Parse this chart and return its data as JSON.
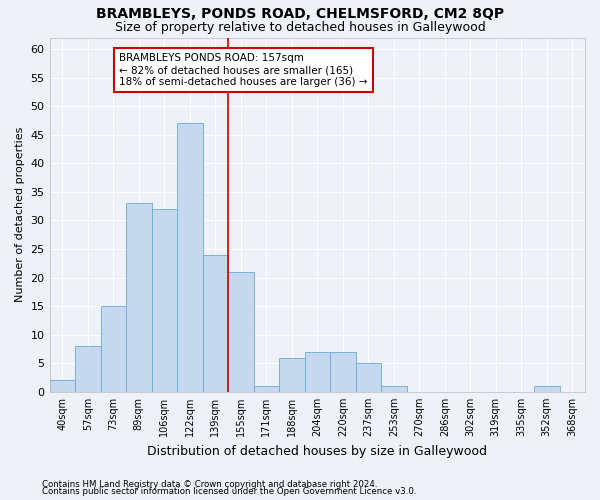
{
  "title": "BRAMBLEYS, PONDS ROAD, CHELMSFORD, CM2 8QP",
  "subtitle": "Size of property relative to detached houses in Galleywood",
  "xlabel": "Distribution of detached houses by size in Galleywood",
  "ylabel": "Number of detached properties",
  "categories": [
    "40sqm",
    "57sqm",
    "73sqm",
    "89sqm",
    "106sqm",
    "122sqm",
    "139sqm",
    "155sqm",
    "171sqm",
    "188sqm",
    "204sqm",
    "220sqm",
    "237sqm",
    "253sqm",
    "270sqm",
    "286sqm",
    "302sqm",
    "319sqm",
    "335sqm",
    "352sqm",
    "368sqm"
  ],
  "values": [
    2,
    8,
    15,
    33,
    32,
    47,
    24,
    21,
    1,
    6,
    7,
    7,
    5,
    1,
    0,
    0,
    0,
    0,
    0,
    1,
    0
  ],
  "bar_color": "#c5d8ee",
  "bar_edgecolor": "#6aaad4",
  "redline_x": 7,
  "annotation_line1": "BRAMBLEYS PONDS ROAD: 157sqm",
  "annotation_line2": "← 82% of detached houses are smaller (165)",
  "annotation_line3": "18% of semi-detached houses are larger (36) →",
  "ylim": [
    0,
    62
  ],
  "yticks": [
    0,
    5,
    10,
    15,
    20,
    25,
    30,
    35,
    40,
    45,
    50,
    55,
    60
  ],
  "footnote1": "Contains HM Land Registry data © Crown copyright and database right 2024.",
  "footnote2": "Contains public sector information licensed under the Open Government Licence v3.0.",
  "background_color": "#eef2f8",
  "plot_bg_color": "#eef2f8",
  "title_fontsize": 10,
  "subtitle_fontsize": 9,
  "annotation_box_color": "#ffffff",
  "annotation_box_edgecolor": "#cc0000"
}
